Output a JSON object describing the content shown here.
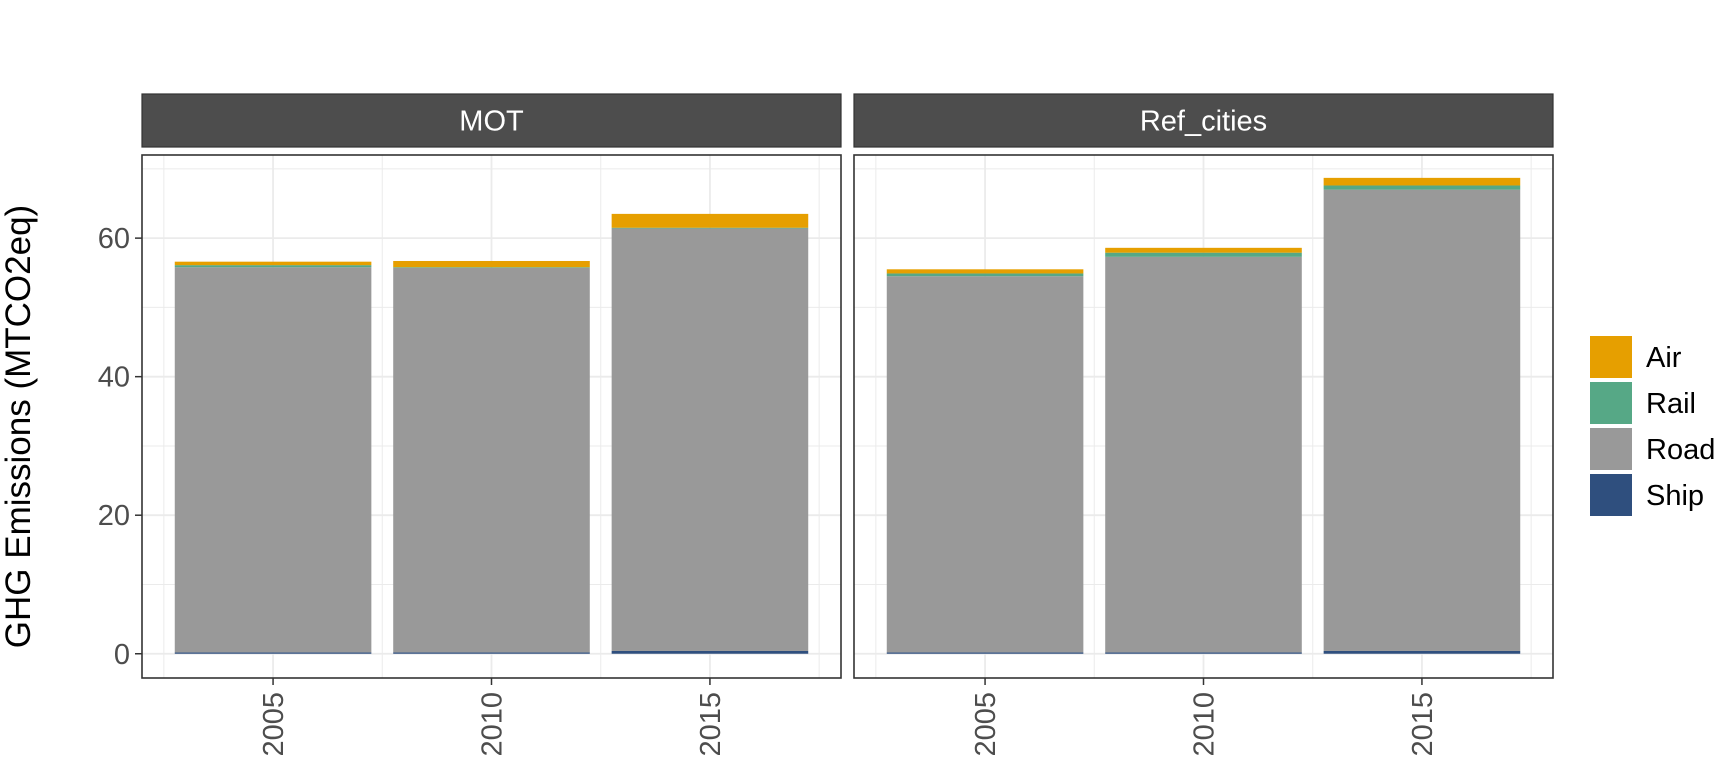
{
  "chart_data": {
    "type": "bar",
    "stacked": true,
    "ylabel": "GHG Emissions (MTCO2eq)",
    "xlabel": "",
    "ylim": [
      -3.5,
      72
    ],
    "yticks": [
      0,
      20,
      40,
      60
    ],
    "grid": true,
    "legend_position": "right",
    "categories": [
      "2005",
      "2010",
      "2015"
    ],
    "facets": [
      {
        "label": "MOT",
        "series": [
          {
            "name": "Ship",
            "values": [
              0.2,
              0.2,
              0.4
            ]
          },
          {
            "name": "Road",
            "values": [
              55.6,
              55.5,
              61.0
            ]
          },
          {
            "name": "Rail",
            "values": [
              0.3,
              0.1,
              0.1
            ]
          },
          {
            "name": "Air",
            "values": [
              0.5,
              0.9,
              2.0
            ]
          }
        ]
      },
      {
        "label": "Ref_cities",
        "series": [
          {
            "name": "Ship",
            "values": [
              0.2,
              0.2,
              0.4
            ]
          },
          {
            "name": "Road",
            "values": [
              54.3,
              57.1,
              66.6
            ]
          },
          {
            "name": "Rail",
            "values": [
              0.4,
              0.6,
              0.6
            ]
          },
          {
            "name": "Air",
            "values": [
              0.6,
              0.7,
              1.1
            ]
          }
        ]
      }
    ],
    "legend": [
      {
        "name": "Air",
        "color": "#E69F00"
      },
      {
        "name": "Rail",
        "color": "#56A886"
      },
      {
        "name": "Road",
        "color": "#999999"
      },
      {
        "name": "Ship",
        "color": "#2F4F7E"
      }
    ],
    "colors": {
      "Air": "#E69F00",
      "Rail": "#56A886",
      "Road": "#999999",
      "Ship": "#2F4F7E",
      "strip_bg": "#4D4D4D",
      "strip_text": "#FFFFFF",
      "grid": "#EBEBEB",
      "axis_text": "#4D4D4D"
    }
  }
}
